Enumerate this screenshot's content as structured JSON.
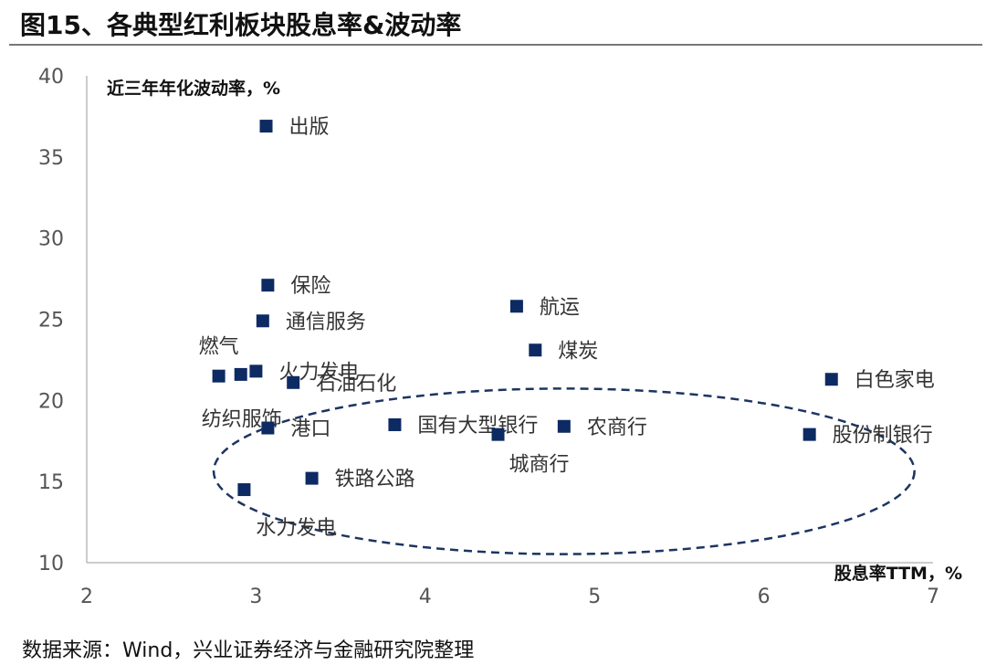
{
  "title": "图15、各典型红利板块股息率&波动率",
  "source": "数据来源：Wind，兴业证券经济与金融研究院整理",
  "chart_data": {
    "type": "scatter",
    "title": "图15、各典型红利板块股息率&波动率",
    "xlabel": "股息率TTM，%",
    "ylabel": "近三年年化波动率，%",
    "xlim": [
      2,
      7
    ],
    "ylim": [
      10,
      40
    ],
    "xticks": [
      2,
      3,
      4,
      5,
      6,
      7
    ],
    "yticks": [
      10,
      15,
      20,
      25,
      30,
      35,
      40
    ],
    "grid": false,
    "marker_color": "#0d2a63",
    "annotation": "dashed ellipse around low-volatility sectors",
    "points": [
      {
        "label": "出版",
        "x": 3.06,
        "y": 36.9
      },
      {
        "label": "保险",
        "x": 3.07,
        "y": 27.1
      },
      {
        "label": "通信服务",
        "x": 3.04,
        "y": 24.9
      },
      {
        "label": "燃气",
        "x": 2.78,
        "y": 21.5
      },
      {
        "label": "纺织服饰",
        "x": 2.91,
        "y": 21.6
      },
      {
        "label": "火力发电",
        "x": 3.0,
        "y": 21.8
      },
      {
        "label": "石油石化",
        "x": 3.22,
        "y": 21.1
      },
      {
        "label": "港口",
        "x": 3.07,
        "y": 18.3
      },
      {
        "label": "水力发电",
        "x": 2.93,
        "y": 14.5
      },
      {
        "label": "铁路公路",
        "x": 3.33,
        "y": 15.2
      },
      {
        "label": "国有大型银行",
        "x": 3.82,
        "y": 18.5
      },
      {
        "label": "城商行",
        "x": 4.43,
        "y": 17.9
      },
      {
        "label": "农商行",
        "x": 4.82,
        "y": 18.4
      },
      {
        "label": "航运",
        "x": 4.54,
        "y": 25.8
      },
      {
        "label": "煤炭",
        "x": 4.65,
        "y": 23.1
      },
      {
        "label": "白色家电",
        "x": 6.4,
        "y": 21.3
      },
      {
        "label": "股份制银行",
        "x": 6.27,
        "y": 17.9
      }
    ]
  }
}
